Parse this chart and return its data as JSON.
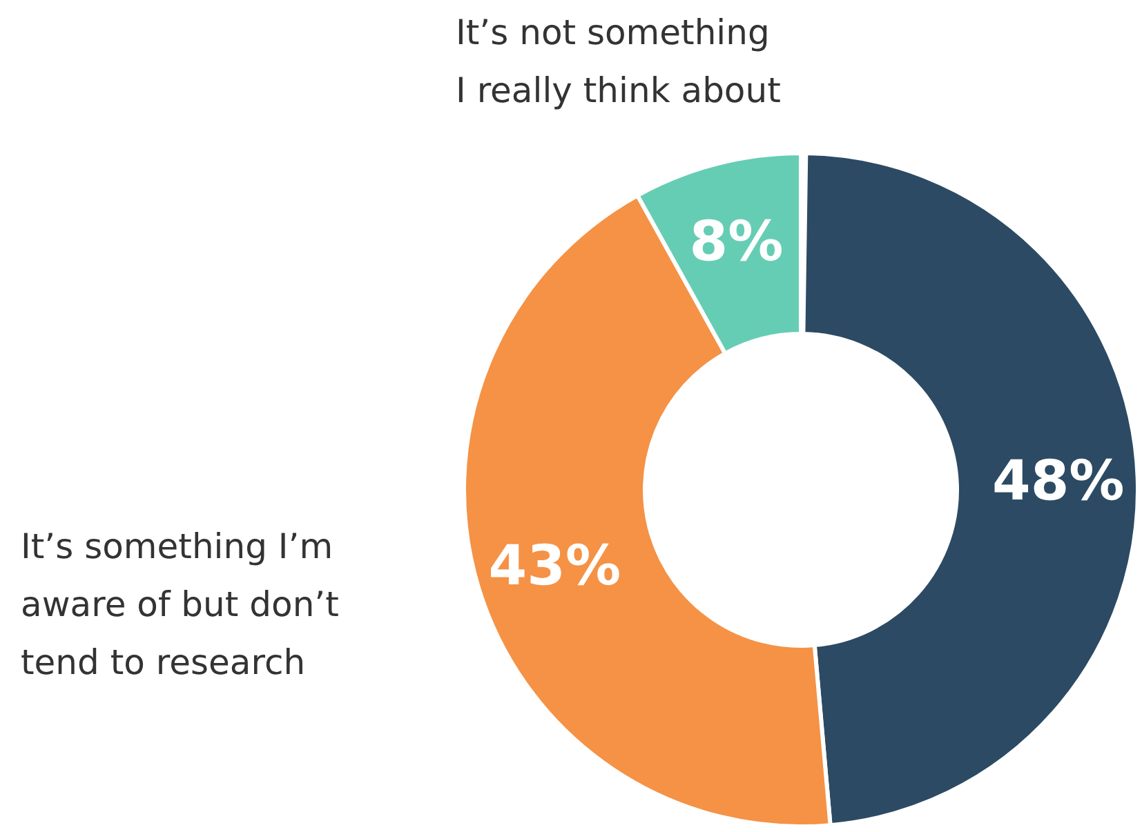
{
  "chart_data": {
    "type": "donut",
    "categories": [
      null,
      "It’s something I’m\naware of but don’t\ntend to research",
      "It’s not something\nI really think about"
    ],
    "values": [
      48,
      43,
      8
    ],
    "colors": [
      "#2c4a63",
      "#f59245",
      "#66cdb5"
    ],
    "value_labels": [
      "48%",
      "43%",
      "8%"
    ]
  }
}
